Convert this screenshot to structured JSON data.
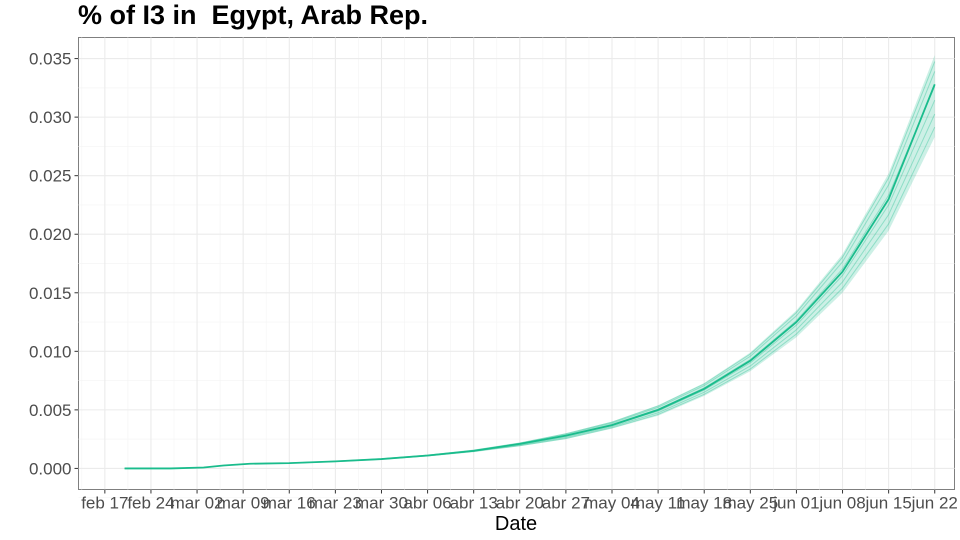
{
  "chart_data": {
    "type": "line",
    "title": "% of I3 in  Egypt, Arab Rep.",
    "xlabel": "Date",
    "ylabel": "",
    "ylim": [
      -0.0018,
      0.0368
    ],
    "xlim": [
      "2020-02-13",
      "2020-06-25"
    ],
    "grid": true,
    "legend": "none",
    "line_color": "#1abc8c",
    "band_color": "#1abc8c",
    "y_ticks": [
      "0.000",
      "0.005",
      "0.010",
      "0.015",
      "0.020",
      "0.025",
      "0.030",
      "0.035"
    ],
    "x_ticks": [
      {
        "date": "2020-02-17",
        "label": "feb 17"
      },
      {
        "date": "2020-02-24",
        "label": "feb 24"
      },
      {
        "date": "2020-03-02",
        "label": "mar 02"
      },
      {
        "date": "2020-03-09",
        "label": "mar 09"
      },
      {
        "date": "2020-03-16",
        "label": "mar 16"
      },
      {
        "date": "2020-03-23",
        "label": "mar 23"
      },
      {
        "date": "2020-03-30",
        "label": "mar 30"
      },
      {
        "date": "2020-04-06",
        "label": "abr 06"
      },
      {
        "date": "2020-04-13",
        "label": "abr 13"
      },
      {
        "date": "2020-04-20",
        "label": "abr 20"
      },
      {
        "date": "2020-04-27",
        "label": "abr 27"
      },
      {
        "date": "2020-05-04",
        "label": "may 04"
      },
      {
        "date": "2020-05-11",
        "label": "may 11"
      },
      {
        "date": "2020-05-18",
        "label": "may 18"
      },
      {
        "date": "2020-05-25",
        "label": "may 25"
      },
      {
        "date": "2020-06-01",
        "label": "jun 01"
      },
      {
        "date": "2020-06-08",
        "label": "jun 08"
      },
      {
        "date": "2020-06-15",
        "label": "jun 15"
      },
      {
        "date": "2020-06-22",
        "label": "jun 22"
      }
    ],
    "series": [
      {
        "x": [
          "2020-02-20",
          "2020-02-27",
          "2020-03-03",
          "2020-03-06",
          "2020-03-10",
          "2020-03-16",
          "2020-03-23",
          "2020-03-30",
          "2020-04-06",
          "2020-04-13",
          "2020-04-20",
          "2020-04-27",
          "2020-05-04",
          "2020-05-11",
          "2020-05-18",
          "2020-05-25",
          "2020-06-01",
          "2020-06-08",
          "2020-06-15",
          "2020-06-22"
        ],
        "y": [
          0.0,
          0.0,
          8e-05,
          0.00025,
          0.0004,
          0.00045,
          0.0006,
          0.0008,
          0.0011,
          0.0015,
          0.0021,
          0.0028,
          0.0037,
          0.005,
          0.0068,
          0.0092,
          0.0125,
          0.0168,
          0.023,
          0.0328
        ],
        "y_low": [
          0.0,
          0.0,
          8e-05,
          0.00025,
          0.0004,
          0.00045,
          0.00058,
          0.00078,
          0.00105,
          0.00142,
          0.0019,
          0.0025,
          0.0034,
          0.0045,
          0.0062,
          0.0083,
          0.0112,
          0.015,
          0.0203,
          0.0283
        ],
        "y_high": [
          0.0,
          0.0,
          8e-05,
          0.00025,
          0.0004,
          0.00046,
          0.00062,
          0.00083,
          0.00114,
          0.00158,
          0.0022,
          0.003,
          0.004,
          0.0054,
          0.0073,
          0.0099,
          0.0135,
          0.0183,
          0.0252,
          0.0353
        ]
      }
    ]
  }
}
